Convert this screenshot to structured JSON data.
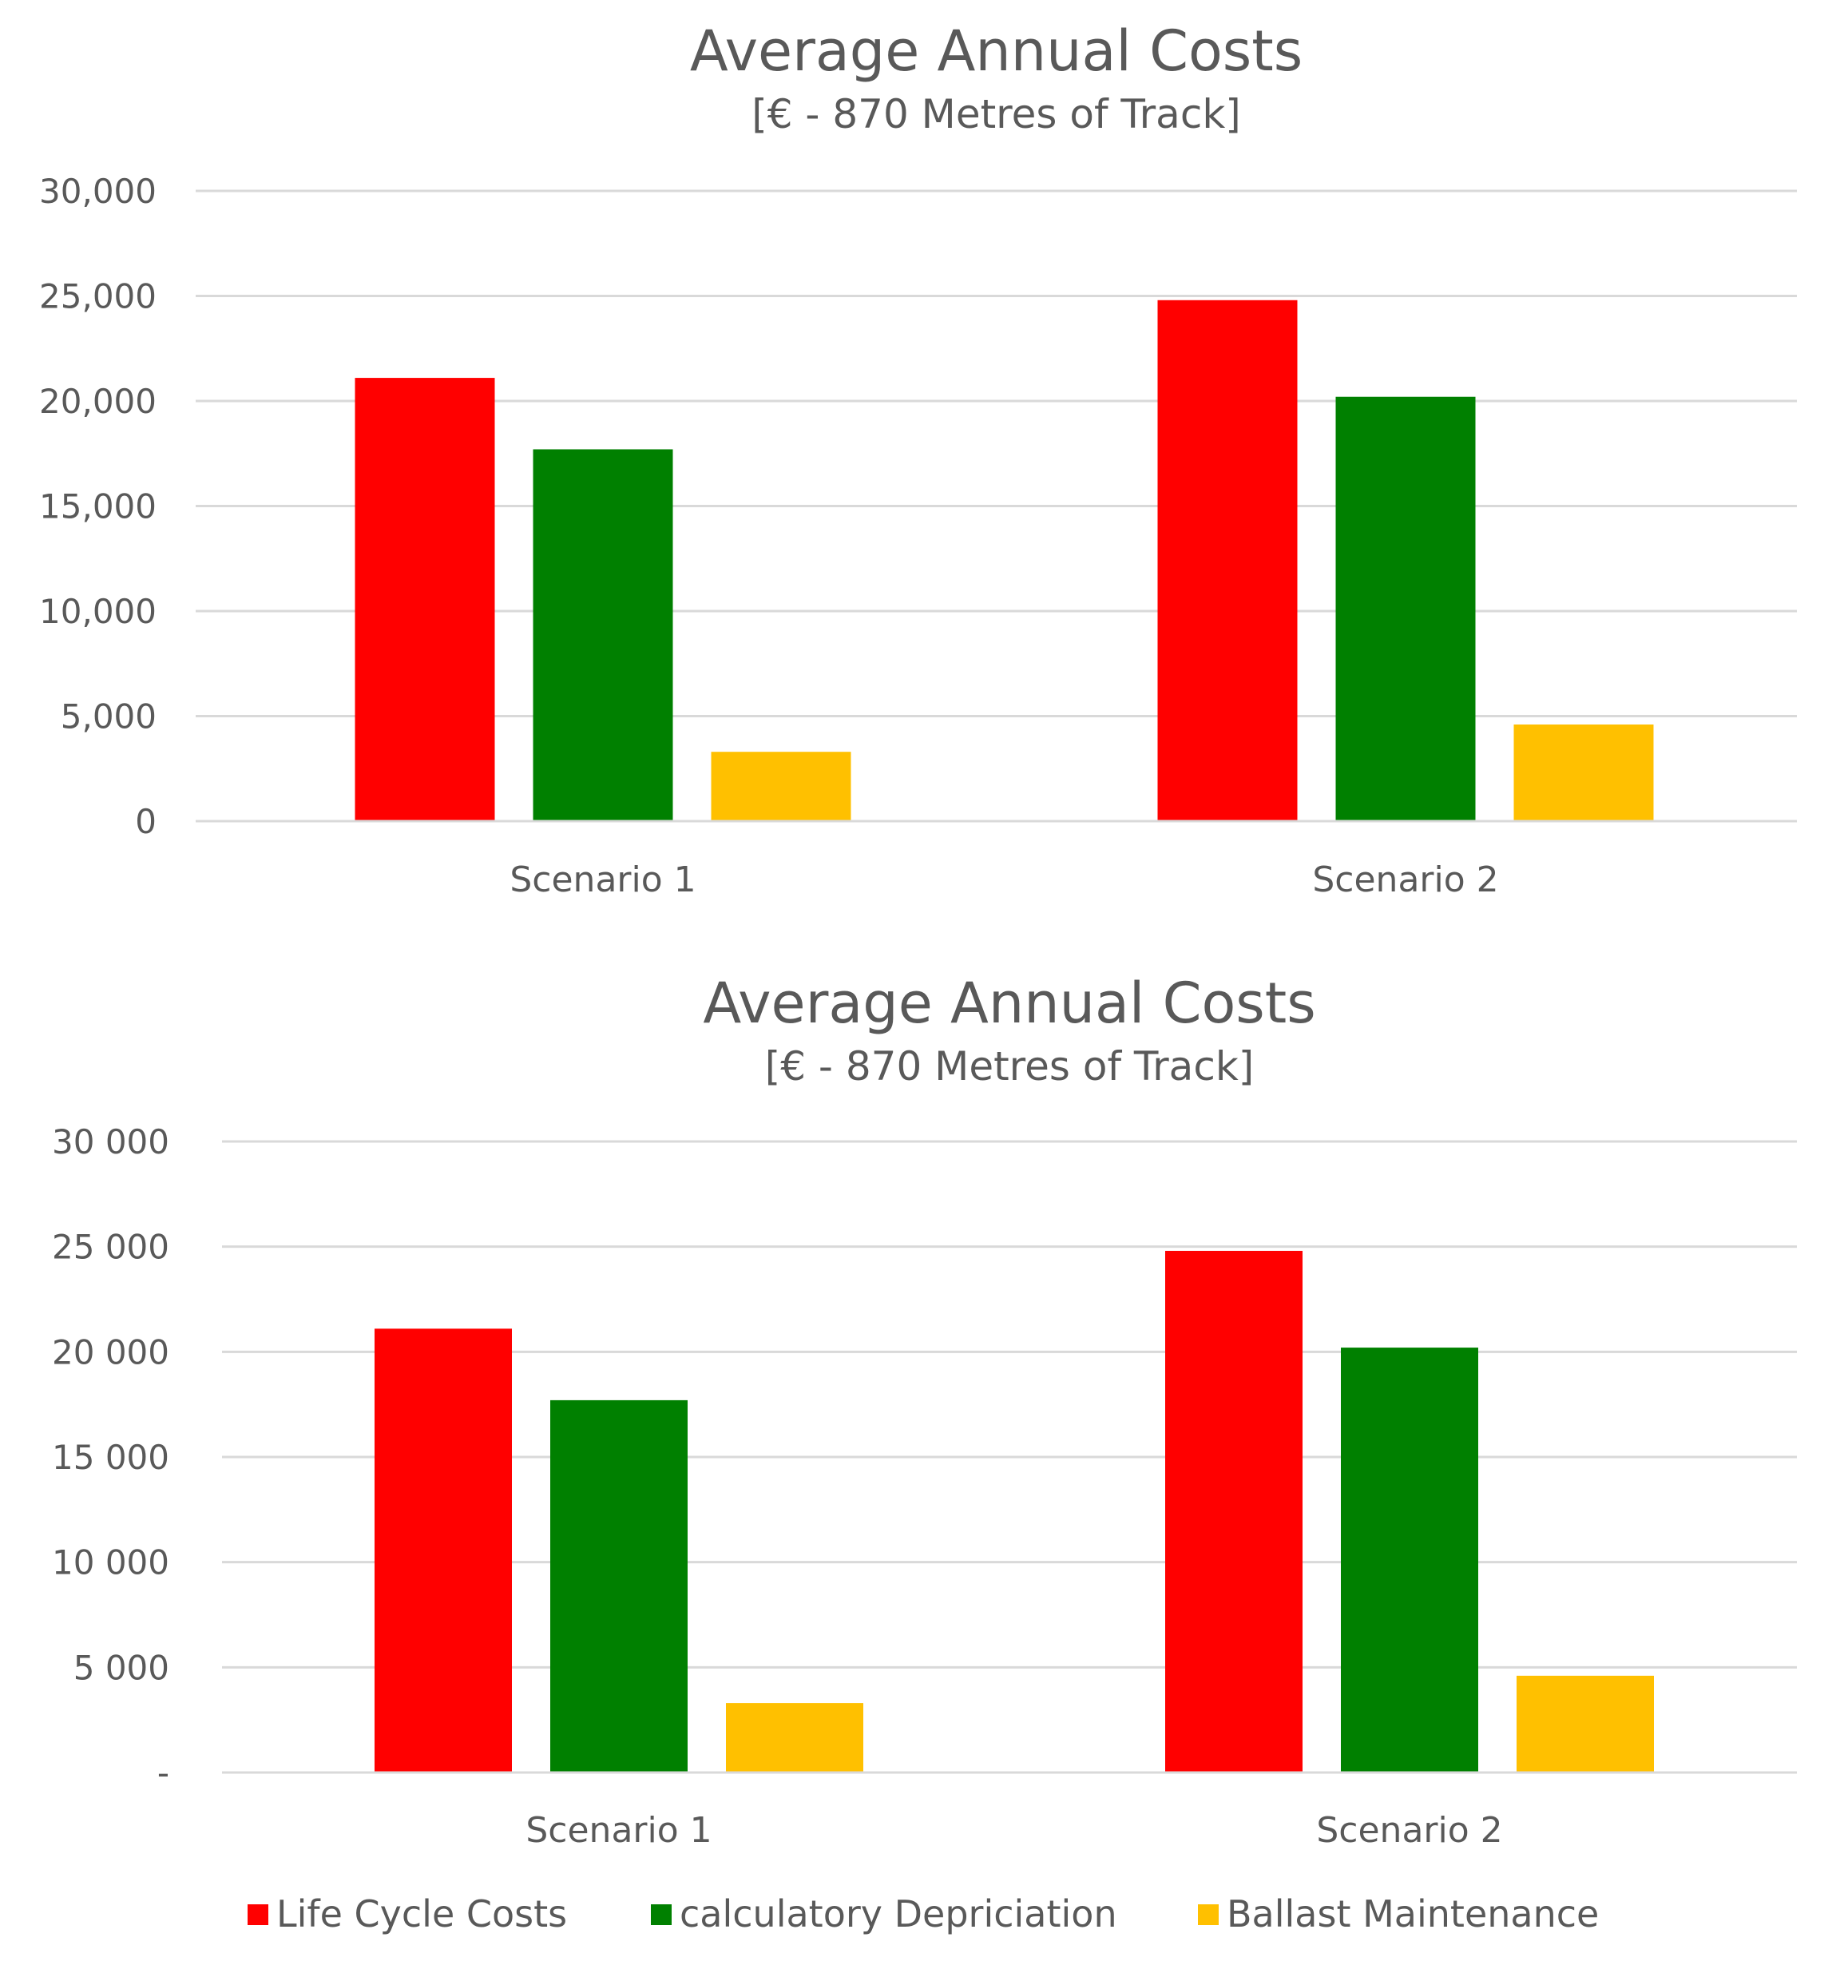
{
  "chart_data": [
    {
      "type": "bar",
      "title": "Average Annual Costs",
      "subtitle": "[€ - 870 Metres of Track]",
      "categories": [
        "Scenario 1",
        "Scenario 2"
      ],
      "series": [
        {
          "name": "Life Cycle Costs",
          "color": "#ff0000",
          "values": [
            21100,
            24800
          ]
        },
        {
          "name": "calculatory Depriciation",
          "color": "#008000",
          "values": [
            17700,
            20200
          ]
        },
        {
          "name": "Ballast Maintenance",
          "color": "#ffc000",
          "values": [
            3300,
            4600
          ]
        }
      ],
      "ylim": [
        0,
        30000
      ],
      "y_ticks": [
        0,
        5000,
        10000,
        15000,
        20000,
        25000,
        30000
      ],
      "y_tick_labels": [
        "0",
        "5,000",
        "10,000",
        "15,000",
        "20,000",
        "25,000",
        "30,000"
      ],
      "xlabel": "",
      "ylabel": "",
      "grid": true,
      "legend": "none"
    },
    {
      "type": "bar",
      "title": "Average Annual Costs",
      "subtitle": "[€ - 870 Metres of Track]",
      "categories": [
        "Scenario 1",
        "Scenario 2"
      ],
      "series": [
        {
          "name": "Life Cycle Costs",
          "color": "#ff0000",
          "values": [
            21100,
            24800
          ]
        },
        {
          "name": "calculatory Depriciation",
          "color": "#008000",
          "values": [
            17700,
            20200
          ]
        },
        {
          "name": "Ballast Maintenance",
          "color": "#ffc000",
          "values": [
            3300,
            4600
          ]
        }
      ],
      "ylim": [
        0,
        30000
      ],
      "y_ticks": [
        0,
        5000,
        10000,
        15000,
        20000,
        25000,
        30000
      ],
      "y_tick_labels": [
        "-",
        "5 000",
        "10 000",
        "15 000",
        "20 000",
        "25 000",
        "30 000"
      ],
      "xlabel": "",
      "ylabel": "",
      "grid": true,
      "legend": "bottom"
    }
  ]
}
